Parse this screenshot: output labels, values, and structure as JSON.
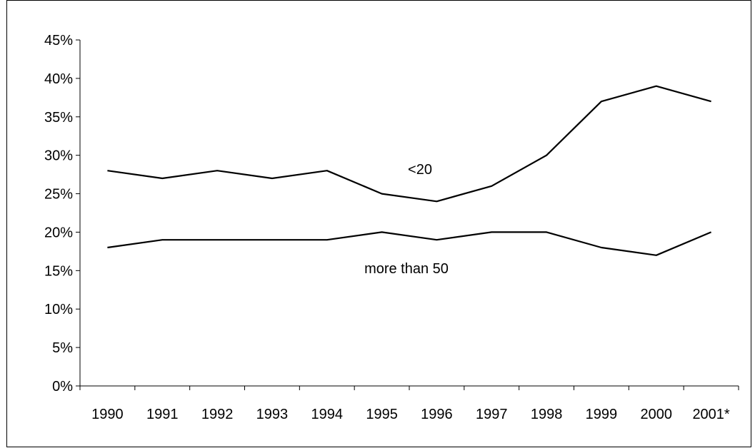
{
  "chart_data": {
    "type": "line",
    "categories": [
      "1990",
      "1991",
      "1992",
      "1993",
      "1994",
      "1995",
      "1996",
      "1997",
      "1998",
      "1999",
      "2000",
      "2001*"
    ],
    "series": [
      {
        "name": "<20",
        "values": [
          28,
          27,
          28,
          27,
          28,
          25,
          24,
          26,
          30,
          37,
          39,
          37
        ],
        "color": "#000000"
      },
      {
        "name": "more than 50",
        "values": [
          18,
          19,
          19,
          19,
          19,
          20,
          19,
          20,
          20,
          18,
          17,
          20
        ],
        "color": "#000000"
      }
    ],
    "y_ticks": [
      "0%",
      "5%",
      "10%",
      "15%",
      "20%",
      "25%",
      "30%",
      "35%",
      "40%",
      "45%"
    ],
    "ylim": [
      0,
      45
    ],
    "grid": false,
    "legend": "none",
    "title": "",
    "xlabel": "",
    "ylabel": ""
  }
}
